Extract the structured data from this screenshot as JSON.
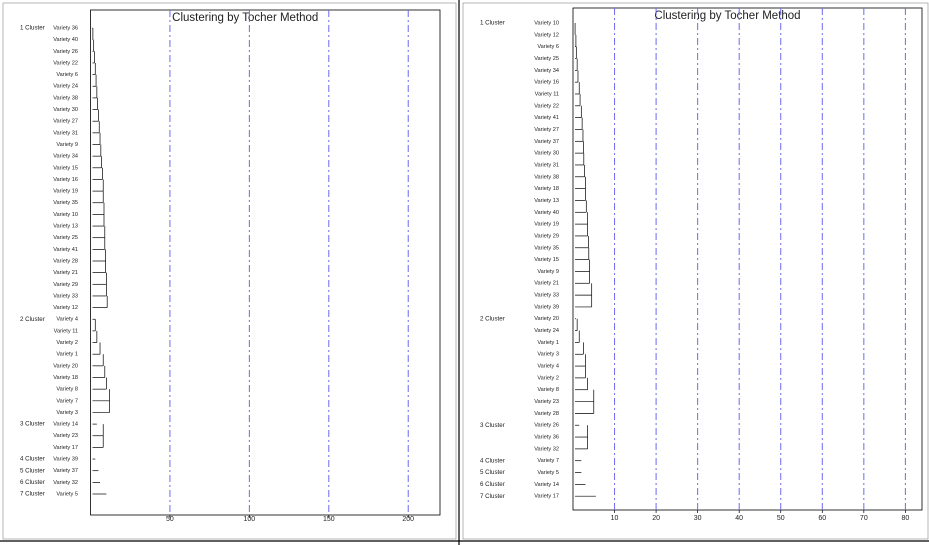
{
  "chart_data": [
    {
      "type": "dendrogram",
      "title": "Clustering by Tocher Method",
      "xlim": [
        0,
        220
      ],
      "xticks": [
        50,
        100,
        150,
        200
      ],
      "grid": true,
      "grid_color": "#6b6bf2",
      "clusters": [
        {
          "label": "1 Cluster",
          "leaves": [
            "Variety 36",
            "Variety 40",
            "Variety 26",
            "Variety 22",
            "Variety 6",
            "Variety 24",
            "Variety 38",
            "Variety 30",
            "Variety 27",
            "Variety 31",
            "Variety 9",
            "Variety 34",
            "Variety 15",
            "Variety 16",
            "Variety 19",
            "Variety 35",
            "Variety 10",
            "Variety 13",
            "Variety 25",
            "Variety 41",
            "Variety 28",
            "Variety 21",
            "Variety 29",
            "Variety 33",
            "Variety 12"
          ],
          "values": [
            1,
            1.5,
            2,
            2.5,
            3,
            3.5,
            4,
            4.5,
            5,
            5.5,
            6,
            6.5,
            7,
            7.5,
            8,
            8,
            8.5,
            8.5,
            9,
            9,
            9.5,
            9.5,
            10,
            10,
            10.5
          ]
        },
        {
          "label": "2 Cluster",
          "leaves": [
            "Variety 4",
            "Variety 11",
            "Variety 2",
            "Variety 1",
            "Variety 20",
            "Variety 18",
            "Variety 8",
            "Variety 7",
            "Variety 3"
          ],
          "values": [
            3,
            3,
            4,
            6,
            8,
            9,
            10,
            12,
            12
          ]
        },
        {
          "label": "3 Cluster",
          "leaves": [
            "Variety 14",
            "Variety 23",
            "Variety 17"
          ],
          "values": [
            4,
            8,
            8
          ]
        },
        {
          "label": "4 Cluster",
          "leaves": [
            "Variety 39"
          ],
          "values": [
            3
          ]
        },
        {
          "label": "5 Cluster",
          "leaves": [
            "Variety 37"
          ],
          "values": [
            5
          ]
        },
        {
          "label": "6 Cluster",
          "leaves": [
            "Variety 32"
          ],
          "values": [
            6
          ]
        },
        {
          "label": "7 Cluster",
          "leaves": [
            "Variety 5"
          ],
          "values": [
            10
          ]
        }
      ]
    },
    {
      "type": "dendrogram",
      "title": "Clustering by Tocher Method",
      "xlim": [
        0,
        84
      ],
      "xticks": [
        10,
        20,
        30,
        40,
        50,
        60,
        70,
        80
      ],
      "grid": true,
      "grid_color": "#6b6bf2",
      "clusters": [
        {
          "label": "1 Cluster",
          "leaves": [
            "Variety 10",
            "Variety 12",
            "Variety 6",
            "Variety 25",
            "Variety 34",
            "Variety 16",
            "Variety 11",
            "Variety 22",
            "Variety 41",
            "Variety 27",
            "Variety 37",
            "Variety 30",
            "Variety 31",
            "Variety 38",
            "Variety 18",
            "Variety 13",
            "Variety 40",
            "Variety 19",
            "Variety 29",
            "Variety 35",
            "Variety 15",
            "Variety 9",
            "Variety 21",
            "Variety 33",
            "Variety 39"
          ],
          "values": [
            0.5,
            0.5,
            0.7,
            0.8,
            1,
            1.2,
            1.5,
            1.7,
            2,
            2.2,
            2.4,
            2.5,
            2.6,
            2.8,
            3,
            3,
            3.2,
            3.5,
            3.5,
            3.7,
            3.8,
            4,
            4,
            4.5,
            4.5
          ]
        },
        {
          "label": "2 Cluster",
          "leaves": [
            "Variety 20",
            "Variety 24",
            "Variety 1",
            "Variety 3",
            "Variety 4",
            "Variety 2",
            "Variety 8",
            "Variety 23",
            "Variety 28"
          ],
          "values": [
            0.7,
            1,
            1.5,
            2.5,
            3,
            3,
            3.5,
            5,
            5
          ]
        },
        {
          "label": "3 Cluster",
          "leaves": [
            "Variety 26",
            "Variety 36",
            "Variety 32"
          ],
          "values": [
            1.5,
            3.5,
            3.5
          ]
        },
        {
          "label": "4 Cluster",
          "leaves": [
            "Variety 7"
          ],
          "values": [
            2
          ]
        },
        {
          "label": "5 Cluster",
          "leaves": [
            "Variety 5"
          ],
          "values": [
            2
          ]
        },
        {
          "label": "6 Cluster",
          "leaves": [
            "Variety 14"
          ],
          "values": [
            3
          ]
        },
        {
          "label": "7 Cluster",
          "leaves": [
            "Variety 17"
          ],
          "values": [
            5.5
          ]
        }
      ]
    }
  ]
}
